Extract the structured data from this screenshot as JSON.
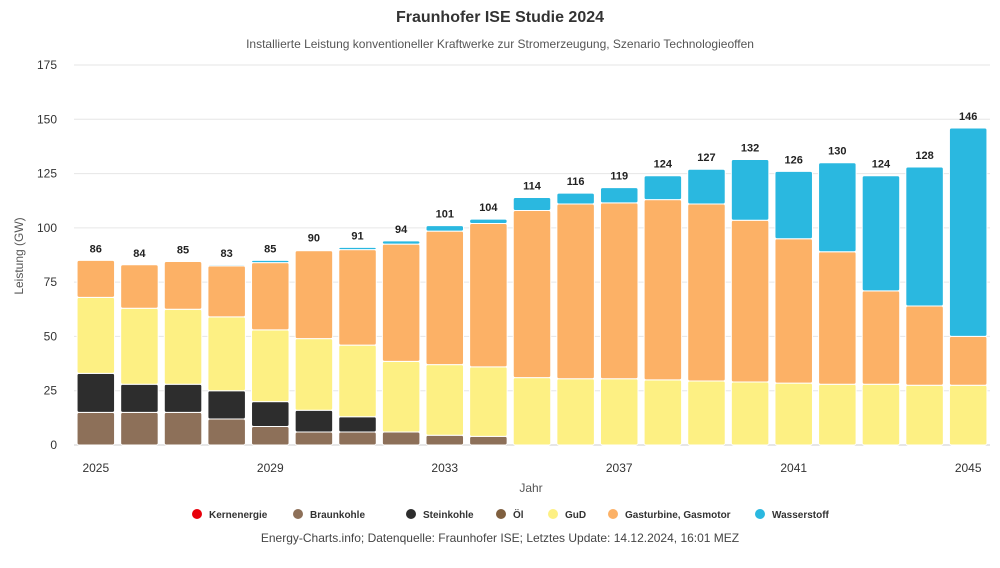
{
  "chart_data": {
    "type": "bar",
    "stacked": true,
    "title": "Fraunhofer ISE Studie 2024",
    "subtitle": "Installierte Leistung konventioneller Kraftwerke zur Stromerzeugung, Szenario Technologieoffen",
    "xlabel": "Jahr",
    "ylabel": "Leistung (GW)",
    "ylim": [
      0,
      175
    ],
    "yticks": [
      0,
      25,
      50,
      75,
      100,
      125,
      150,
      175
    ],
    "xtick_labels": [
      "2025",
      "2029",
      "2033",
      "2037",
      "2041",
      "2045"
    ],
    "grid": true,
    "legend_position": "bottom",
    "categories": [
      "2025",
      "2026",
      "2027",
      "2028",
      "2029",
      "2030",
      "2031",
      "2032",
      "2033",
      "2034",
      "2035",
      "2036",
      "2037",
      "2038",
      "2039",
      "2040",
      "2041",
      "2042",
      "2043",
      "2044",
      "2045"
    ],
    "totals": [
      "86",
      "84",
      "85",
      "83",
      "85",
      "90",
      "91",
      "94",
      "101",
      "104",
      "114",
      "116",
      "119",
      "124",
      "127",
      "132",
      "126",
      "130",
      "124",
      "128",
      "146"
    ],
    "series": [
      {
        "name": "Kernenergie",
        "color": "#e8000b",
        "values": [
          0,
          0,
          0,
          0,
          0,
          0,
          0,
          0,
          0,
          0,
          0,
          0,
          0,
          0,
          0,
          0,
          0,
          0,
          0,
          0,
          0
        ]
      },
      {
        "name": "Braunkohle",
        "color": "#8d7059",
        "values": [
          15,
          15,
          15,
          12,
          8.5,
          6,
          6,
          6,
          4.5,
          4,
          0,
          0,
          0,
          0,
          0,
          0,
          0,
          0,
          0,
          0,
          0
        ]
      },
      {
        "name": "Steinkohle",
        "color": "#2d2d2d",
        "values": [
          18,
          13,
          13,
          13,
          11.5,
          10,
          7,
          0,
          0,
          0,
          0,
          0,
          0,
          0,
          0,
          0,
          0,
          0,
          0,
          0,
          0
        ]
      },
      {
        "name": "Öl",
        "color": "#7f5f3f",
        "values": [
          0,
          0,
          0,
          0,
          0,
          0,
          0,
          0,
          0,
          0,
          0,
          0,
          0,
          0,
          0,
          0,
          0,
          0,
          0,
          0,
          0
        ]
      },
      {
        "name": "GuD",
        "color": "#fdf083",
        "values": [
          35,
          35,
          34.5,
          34,
          33,
          33,
          33,
          32.5,
          32.5,
          32,
          31,
          30.5,
          30.5,
          30,
          29.5,
          29,
          28.5,
          28,
          28,
          27.5,
          27.5
        ]
      },
      {
        "name": "Gasturbine, Gasmotor",
        "color": "#fcb166",
        "values": [
          17,
          20,
          22,
          23.5,
          31,
          40.5,
          44,
          54,
          61.5,
          66,
          77,
          80.5,
          81,
          83,
          81.5,
          74.5,
          66.5,
          61,
          43,
          36.5,
          22.5
        ]
      },
      {
        "name": "Wasserstoff",
        "color": "#2ab8e0",
        "values": [
          0,
          0,
          0,
          0.5,
          1,
          0.5,
          1,
          1.5,
          2.5,
          2,
          6,
          5,
          7,
          11,
          16,
          28,
          31,
          41,
          53,
          64,
          96
        ]
      }
    ]
  },
  "credits": "Energy-Charts.info; Datenquelle: Fraunhofer ISE; Letztes Update: 14.12.2024, 16:01 MEZ"
}
